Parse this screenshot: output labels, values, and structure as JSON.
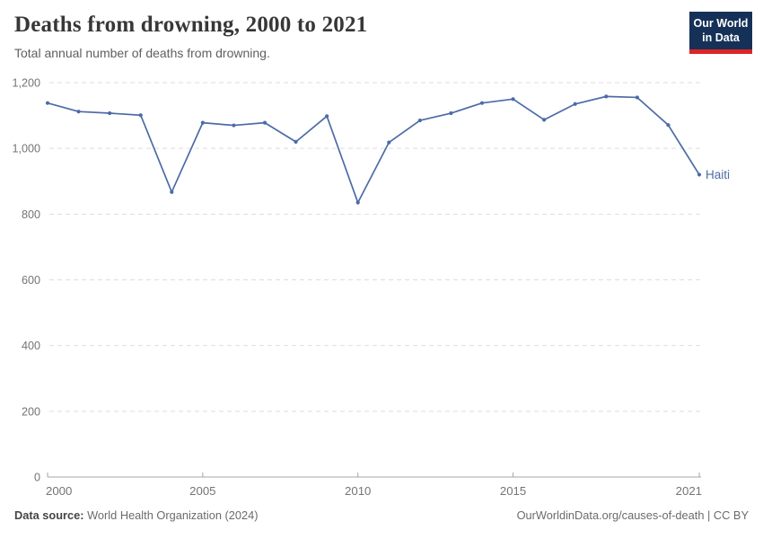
{
  "header": {
    "title": "Deaths from drowning, 2000 to 2021",
    "subtitle": "Total annual number of deaths from drowning."
  },
  "logo": {
    "line1": "Our World",
    "line2": "in Data",
    "bg_color": "#163157",
    "accent_color": "#dd2527"
  },
  "footer": {
    "source_label": "Data source:",
    "source_text": " World Health Organization (2024)",
    "credit": "OurWorldinData.org/causes-of-death | CC BY"
  },
  "chart_data": {
    "type": "line",
    "title": "Deaths from drowning, 2000 to 2021",
    "x": [
      2000,
      2001,
      2002,
      2003,
      2004,
      2005,
      2006,
      2007,
      2008,
      2009,
      2010,
      2011,
      2012,
      2013,
      2014,
      2015,
      2016,
      2017,
      2018,
      2019,
      2020,
      2021
    ],
    "series": [
      {
        "name": "Haiti",
        "color": "#4c6ba6",
        "values": [
          1138,
          1112,
          1107,
          1101,
          867,
          1078,
          1070,
          1078,
          1020,
          1098,
          835,
          1018,
          1085,
          1107,
          1138,
          1150,
          1087,
          1135,
          1158,
          1155,
          1071,
          920
        ]
      }
    ],
    "xlabel": "",
    "ylabel": "",
    "ylim": [
      0,
      1200
    ],
    "y_ticks": [
      0,
      200,
      400,
      600,
      800,
      1000,
      1200
    ],
    "y_tick_labels": [
      "0",
      "200",
      "400",
      "600",
      "800",
      "1,000",
      "1,200"
    ],
    "x_ticks": [
      2000,
      2005,
      2010,
      2015,
      2021
    ],
    "grid": "horizontal dashed",
    "legend": "end-of-line label"
  }
}
